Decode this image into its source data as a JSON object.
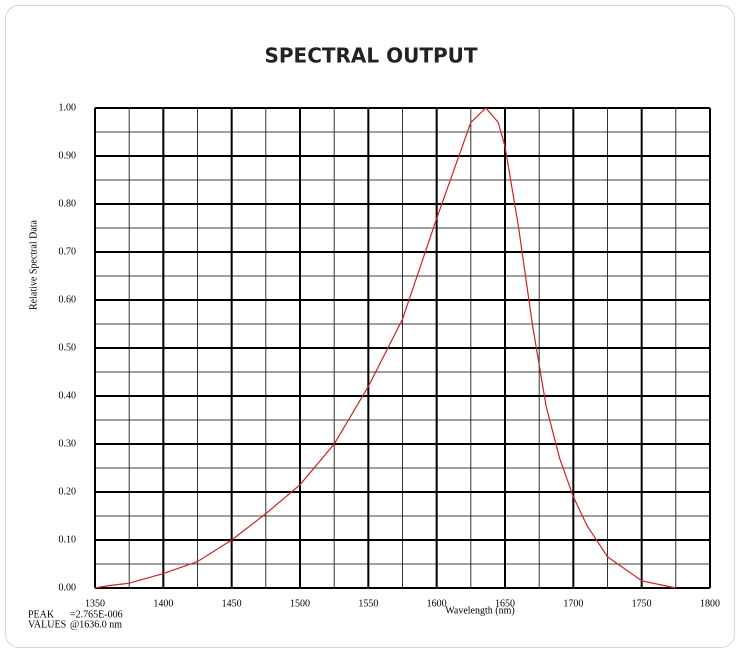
{
  "chart_data": {
    "type": "line",
    "title": "SPECTRAL OUTPUT",
    "x_label": "Wavelength (nm)",
    "y_label": "Relative Spectral Data",
    "peak_labels": [
      "PEAK",
      "VALUES"
    ],
    "peak_values": [
      "=2.765E-006",
      "@1636.0 nm"
    ],
    "x": [
      1350,
      1360,
      1375,
      1400,
      1425,
      1450,
      1475,
      1500,
      1525,
      1550,
      1575,
      1600,
      1615,
      1625,
      1636,
      1645,
      1650,
      1660,
      1670,
      1680,
      1690,
      1700,
      1710,
      1725,
      1750,
      1775
    ],
    "series": [
      {
        "name": "Relative Spectral Data",
        "color": "#cc2222",
        "values": [
          0.0,
          0.005,
          0.01,
          0.03,
          0.055,
          0.1,
          0.155,
          0.215,
          0.3,
          0.42,
          0.56,
          0.77,
          0.89,
          0.97,
          1.0,
          0.97,
          0.92,
          0.75,
          0.55,
          0.38,
          0.27,
          0.19,
          0.13,
          0.065,
          0.015,
          0.0
        ]
      }
    ],
    "xlim": [
      1350,
      1800
    ],
    "ylim": [
      0,
      1
    ],
    "xticks": [
      1350,
      1400,
      1450,
      1500,
      1550,
      1600,
      1650,
      1700,
      1750,
      1800
    ],
    "yticks": [
      {
        "value": 0,
        "label": "0.00"
      },
      {
        "value": 0.1,
        "label": "0.10"
      },
      {
        "value": 0.2,
        "label": "0.20"
      },
      {
        "value": 0.3,
        "label": "0.30"
      },
      {
        "value": 0.4,
        "label": "0.40"
      },
      {
        "value": 0.5,
        "label": "0.50"
      },
      {
        "value": 0.6,
        "label": "0.60"
      },
      {
        "value": 0.7,
        "label": "0.70"
      },
      {
        "value": 0.8,
        "label": "0.80"
      },
      {
        "value": 0.9,
        "label": "0.90"
      },
      {
        "value": 1,
        "label": "1.00"
      }
    ],
    "grid": true,
    "minor_grid": true,
    "peak_color": "#cc2222"
  }
}
